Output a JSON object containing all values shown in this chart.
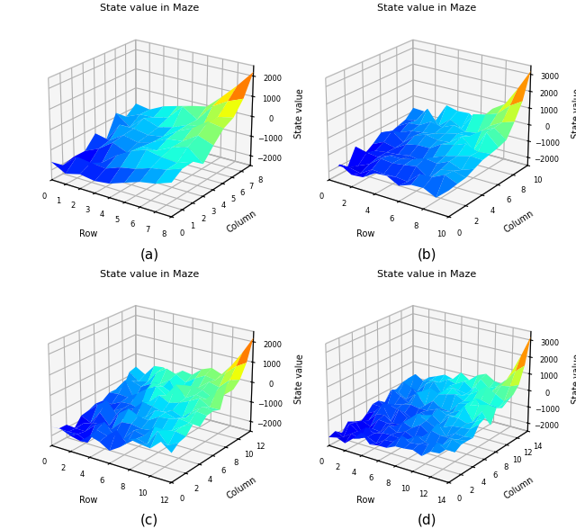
{
  "title": "State value in Maze",
  "xlabel": "Row",
  "ylabel": "Column",
  "zlabel": "State value",
  "subplots": [
    {
      "rows": 9,
      "cols": 9,
      "zlim": [
        -2500,
        2500
      ],
      "zticks": [
        -2000,
        -1000,
        0,
        1000,
        2000
      ],
      "label": "(a)",
      "peak": 2200,
      "seed": 1
    },
    {
      "rows": 11,
      "cols": 11,
      "zlim": [
        -2500,
        3500
      ],
      "zticks": [
        -2000,
        -1000,
        0,
        1000,
        2000,
        3000
      ],
      "label": "(b)",
      "peak": 3200,
      "seed": 2
    },
    {
      "rows": 13,
      "cols": 13,
      "zlim": [
        -2500,
        2500
      ],
      "zticks": [
        -2000,
        -1000,
        0,
        1000,
        2000
      ],
      "label": "(c)",
      "peak": 2200,
      "seed": 3
    },
    {
      "rows": 15,
      "cols": 15,
      "zlim": [
        -2500,
        3500
      ],
      "zticks": [
        -2000,
        -1000,
        0,
        1000,
        2000,
        3000
      ],
      "label": "(d)",
      "peak": 3200,
      "seed": 4
    }
  ],
  "elev": 22,
  "azim": -55,
  "cmap": "jet",
  "background_color": "white"
}
